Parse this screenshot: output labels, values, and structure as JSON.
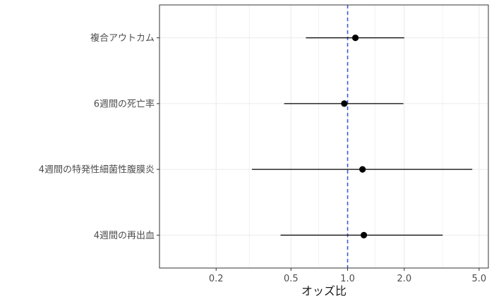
{
  "chart_data": {
    "type": "forest",
    "title": "",
    "xlabel": "オッズ比",
    "ylabel": "",
    "x_scale": "log",
    "xlim": [
      0.1,
      5.6
    ],
    "x_ticks": [
      {
        "value": 0.2,
        "label": "0.2"
      },
      {
        "value": 0.5,
        "label": "0.5"
      },
      {
        "value": 1.0,
        "label": "1.0"
      },
      {
        "value": 2.0,
        "label": "2.0"
      },
      {
        "value": 5.0,
        "label": "5.0"
      }
    ],
    "x_minor_ticks": [
      0.1,
      0.3,
      0.7,
      1.4,
      3.2
    ],
    "reference_line": {
      "value": 1.0,
      "style": "dashed",
      "color": "#3b5bdb"
    },
    "grid": true,
    "rows": [
      {
        "label": "複合アウトカム",
        "estimate": 1.1,
        "lower": 0.6,
        "upper": 2.0
      },
      {
        "label": "6週間の死亡率",
        "estimate": 0.96,
        "lower": 0.46,
        "upper": 1.98
      },
      {
        "label": "4週間の特発性細菌性腹膜炎",
        "estimate": 1.2,
        "lower": 0.31,
        "upper": 4.6
      },
      {
        "label": "4週間の再出血",
        "estimate": 1.22,
        "lower": 0.44,
        "upper": 3.2
      }
    ],
    "point_color": "#000000",
    "line_color": "#000000",
    "panel_border_color": "#333333",
    "grid_color": "#ebebeb"
  }
}
